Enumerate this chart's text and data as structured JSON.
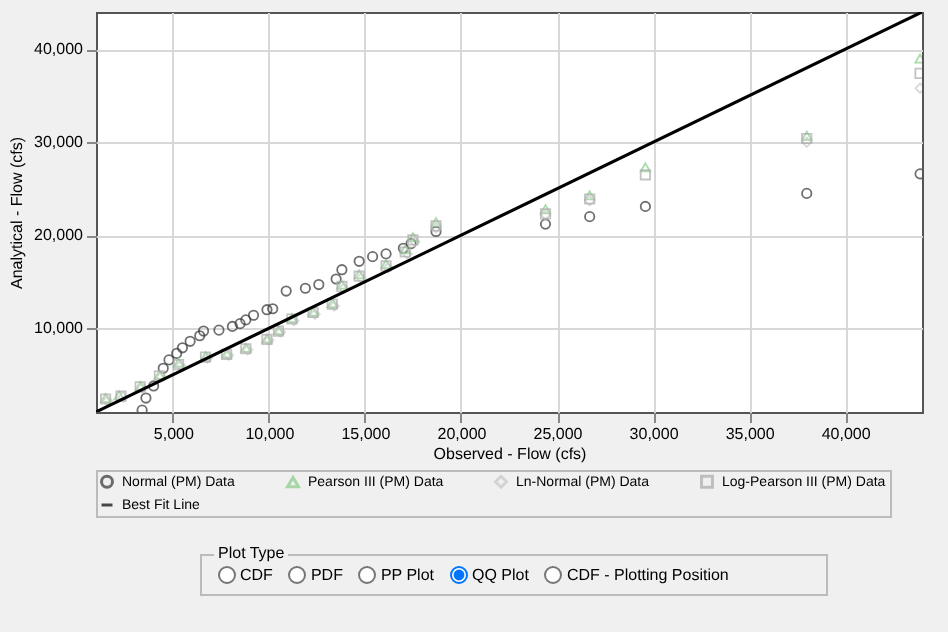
{
  "chart_data": {
    "type": "scatter",
    "xlabel": "Observed - Flow (cfs)",
    "ylabel": "Analytical - Flow (cfs)",
    "xlim": [
      1000,
      44000
    ],
    "ylim": [
      1000,
      44000
    ],
    "xticks": [
      {
        "value": 5000,
        "label": "5,000"
      },
      {
        "value": 10000,
        "label": "10,000"
      },
      {
        "value": 15000,
        "label": "15,000"
      },
      {
        "value": 20000,
        "label": "20,000"
      },
      {
        "value": 25000,
        "label": "25,000"
      },
      {
        "value": 30000,
        "label": "30,000"
      },
      {
        "value": 35000,
        "label": "35,000"
      },
      {
        "value": 40000,
        "label": "40,000"
      }
    ],
    "yticks": [
      {
        "value": 10000,
        "label": "10,000"
      },
      {
        "value": 20000,
        "label": "20,000"
      },
      {
        "value": 30000,
        "label": "30,000"
      },
      {
        "value": 40000,
        "label": "40,000"
      }
    ],
    "grid": true,
    "legend": "bottom",
    "series": [
      {
        "name": "Normal (PM) Data",
        "color": "#333333",
        "marker": "circle",
        "x": [
          3400,
          3600,
          4000,
          4500,
          4800,
          5200,
          5500,
          5900,
          6400,
          6600,
          7400,
          8100,
          8500,
          8800,
          9200,
          9900,
          10200,
          10900,
          11900,
          12600,
          13500,
          13800,
          14700,
          15400,
          16100,
          17000,
          17400,
          18700,
          24400,
          26700,
          29600,
          38000,
          43900
        ],
        "values": [
          1200,
          2500,
          3800,
          5700,
          6600,
          7300,
          7900,
          8600,
          9200,
          9700,
          9800,
          10200,
          10500,
          10900,
          11400,
          12000,
          12100,
          14000,
          14300,
          14700,
          15300,
          16300,
          17200,
          17700,
          18000,
          18600,
          19100,
          20400,
          21200,
          22000,
          23100,
          24500,
          26600
        ]
      },
      {
        "name": "Pearson III (PM) Data",
        "color": "#88cc88",
        "marker": "triangle",
        "x": [
          1500,
          2200,
          3300,
          4300,
          5300,
          6700,
          7800,
          8800,
          9900,
          10500,
          11200,
          12300,
          13300,
          13800,
          14700,
          16100,
          17100,
          17500,
          18700,
          24400,
          26700,
          29600,
          38000,
          43900
        ],
        "values": [
          2500,
          2800,
          3800,
          5000,
          6300,
          7000,
          7300,
          7900,
          8900,
          9800,
          11100,
          11800,
          12700,
          14700,
          15800,
          16900,
          18500,
          19800,
          21400,
          22800,
          24300,
          27300,
          30700,
          39000
        ]
      },
      {
        "name": "Ln-Normal (PM) Data",
        "color": "#c8c8c8",
        "marker": "diamond",
        "x": [
          1600,
          2400,
          3400,
          4400,
          5400,
          6800,
          7900,
          8900,
          10000,
          10600,
          11300,
          12400,
          13400,
          13900,
          14800,
          16200,
          17200,
          17600,
          18700,
          24400,
          26700,
          38000,
          43900
        ],
        "values": [
          2200,
          2600,
          3600,
          4800,
          6000,
          6800,
          7100,
          7700,
          8700,
          9600,
          10800,
          11500,
          12400,
          14300,
          15400,
          16500,
          18000,
          19300,
          20800,
          22200,
          23700,
          30000,
          35800
        ]
      },
      {
        "name": "Log-Pearson III (PM) Data",
        "color": "#aaaaaa",
        "marker": "square",
        "x": [
          1500,
          2300,
          3300,
          4300,
          5300,
          6700,
          7800,
          8800,
          9900,
          10500,
          11200,
          12300,
          13300,
          13800,
          14700,
          16100,
          17100,
          17500,
          18700,
          24400,
          26700,
          29600,
          38000,
          43900
        ],
        "values": [
          2400,
          2700,
          3700,
          4900,
          6100,
          6900,
          7200,
          7800,
          8800,
          9700,
          11000,
          11700,
          12600,
          14500,
          15600,
          16700,
          18200,
          19500,
          21000,
          22300,
          23900,
          26500,
          30400,
          37400
        ]
      },
      {
        "name": "Best Fit Line",
        "type": "line",
        "color": "#000000",
        "line_style": "solid",
        "x": [
          1000,
          44000
        ],
        "values": [
          1000,
          44000
        ]
      }
    ],
    "annotations": [
      "Plot Type",
      "CDF",
      "PDF",
      "PP Plot",
      "QQ Plot",
      "CDF - Plotting Position"
    ]
  }
}
